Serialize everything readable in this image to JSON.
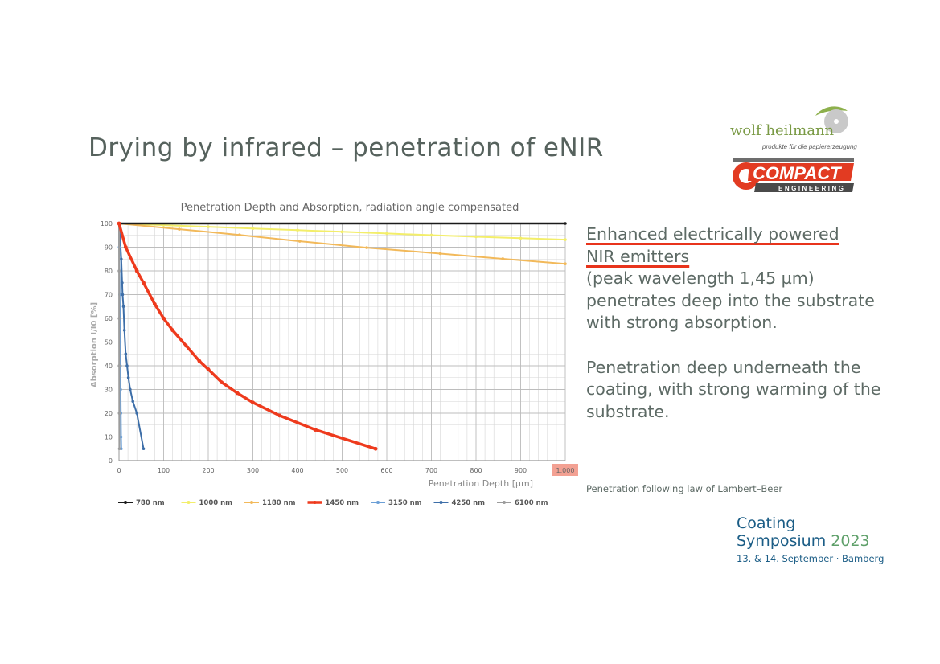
{
  "slide": {
    "title": "Drying by infrared – penetration of eNIR",
    "text_line1": "Enhanced electrically powered",
    "text_line2": "NIR emitters",
    "text_line3": "(peak wavelength 1,45 µm)",
    "text_line4": "penetrates deep into the substrate",
    "text_line5": "with strong absorption.",
    "text_line6": "Penetration deep underneath the",
    "text_line7": "coating, with strong warming of the",
    "text_line8": "substrate.",
    "footnote": "Penetration following law of Lambert–Beer",
    "accent_color": "#e8341c"
  },
  "logos": {
    "wolfheilmann_name": "wolf heilmann",
    "wolfheilmann_sub": "produkte für die papiererzeugung",
    "compact_name": "COMPACT",
    "compact_sub": "ENGINEERING"
  },
  "symposium": {
    "line1": "Coating",
    "line2": "Symposium",
    "year": "2023",
    "line3": "13. & 14. September · Bamberg"
  },
  "chart_data": {
    "type": "line",
    "title": "Penetration Depth and Absorption, radiation angle compensated",
    "xlabel": "Penetration Depth [µm]",
    "ylabel": "Absorption I/I0 [%]",
    "xlim": [
      0,
      1000
    ],
    "ylim": [
      0,
      100
    ],
    "xticks": [
      "0",
      "100",
      "200",
      "300",
      "400",
      "500",
      "600",
      "700",
      "800",
      "900",
      "1.000"
    ],
    "yticks": [
      "0",
      "10",
      "20",
      "30",
      "40",
      "50",
      "60",
      "70",
      "80",
      "90",
      "100"
    ],
    "highlighted_tick": "1.000",
    "grid": true,
    "legend_position": "bottom",
    "series": [
      {
        "name": "780 nm",
        "color": "#1a1a1a",
        "x": [
          0,
          1000
        ],
        "y": [
          100,
          100
        ]
      },
      {
        "name": "1000 nm",
        "color": "#f3ee6a",
        "x": [
          0,
          100,
          200,
          300,
          400,
          500,
          600,
          700,
          800,
          900,
          1000
        ],
        "y": [
          100,
          99.3,
          98.6,
          97.9,
          97.2,
          96.5,
          95.8,
          95.1,
          94.4,
          93.8,
          93.2
        ]
      },
      {
        "name": "1180 nm",
        "color": "#f2b95a",
        "x": [
          0,
          135,
          270,
          405,
          555,
          720,
          860,
          1000
        ],
        "y": [
          100,
          97.6,
          95.2,
          92.5,
          89.8,
          87.3,
          85.1,
          83
        ]
      },
      {
        "name": "1450 nm",
        "color": "#ee3a1d",
        "x": [
          0,
          15,
          40,
          55,
          80,
          100,
          120,
          150,
          180,
          200,
          230,
          265,
          300,
          360,
          440,
          575
        ],
        "y": [
          100,
          90,
          80,
          75,
          66,
          60,
          55,
          48.5,
          42,
          38.5,
          33,
          28.5,
          24.5,
          19,
          13,
          5
        ]
      },
      {
        "name": "3150 nm",
        "color": "#6b9fd6",
        "x": [
          0,
          0.5,
          1,
          1.5,
          2,
          2.5,
          3,
          3.5,
          4,
          4.5,
          5
        ],
        "y": [
          100,
          90,
          80,
          70,
          60,
          50,
          40,
          30,
          20,
          10,
          5
        ]
      },
      {
        "name": "4250 nm",
        "color": "#3d6ea8",
        "x": [
          0,
          2,
          5,
          7,
          8,
          10,
          12,
          15,
          18,
          21,
          25,
          31,
          40,
          55
        ],
        "y": [
          100,
          95,
          85,
          75,
          70,
          65,
          55,
          45,
          40,
          35,
          30,
          25,
          20,
          5
        ]
      },
      {
        "name": "6100 nm",
        "color": "#9c9c9c",
        "x": [
          0,
          0.1,
          0.2,
          0.3,
          0.5,
          0.8
        ],
        "y": [
          100,
          80,
          60,
          40,
          20,
          5
        ]
      }
    ]
  }
}
